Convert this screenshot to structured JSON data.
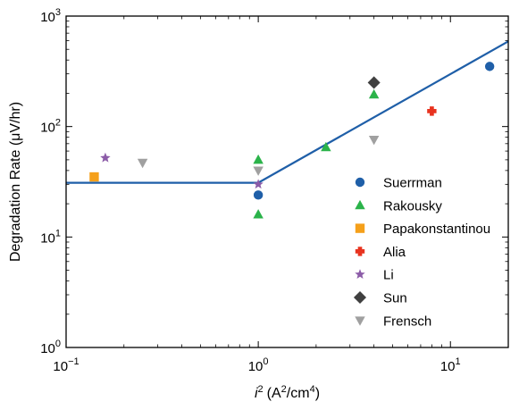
{
  "chart_data": {
    "type": "scatter",
    "title": "",
    "xlabel_main": "i",
    "xlabel_sup": "2",
    "xlabel_units": "(A",
    "xlabel_units_sup": "2",
    "xlabel_units_mid": "/cm",
    "xlabel_units_sup2": "4",
    "xlabel_units_end": ")",
    "ylabel": "Degradation Rate (μV/hr)",
    "x_scale": "log",
    "y_scale": "log",
    "xlim": [
      0.1,
      20
    ],
    "ylim": [
      1,
      1000
    ],
    "grid": false,
    "legend_position": "center-right",
    "x_ticks": [
      {
        "value": 0.1,
        "base": "10",
        "exp": "−1"
      },
      {
        "value": 1,
        "base": "10",
        "exp": "0"
      },
      {
        "value": 10,
        "base": "10",
        "exp": "1"
      }
    ],
    "y_ticks": [
      {
        "value": 1,
        "base": "10",
        "exp": "0"
      },
      {
        "value": 10,
        "base": "10",
        "exp": "1"
      },
      {
        "value": 100,
        "base": "10",
        "exp": "2"
      },
      {
        "value": 1000,
        "base": "10",
        "exp": "3"
      }
    ],
    "fit_line": {
      "color": "#1f5fa8",
      "points": [
        [
          0.1,
          31
        ],
        [
          1.0,
          31
        ],
        [
          20,
          590
        ]
      ]
    },
    "series": [
      {
        "name": "Suerrman",
        "marker": "circle",
        "color": "#1f5fa8",
        "points": [
          [
            1.0,
            24
          ],
          [
            16,
            350
          ]
        ]
      },
      {
        "name": "Rakousky",
        "marker": "triangle-up",
        "color": "#2bb34a",
        "points": [
          [
            1.0,
            50
          ],
          [
            1.0,
            16
          ],
          [
            2.25,
            65
          ],
          [
            4.0,
            195
          ]
        ]
      },
      {
        "name": "Papakonstantinou",
        "marker": "square",
        "color": "#f5a01a",
        "points": [
          [
            0.14,
            35
          ]
        ]
      },
      {
        "name": "Alia",
        "marker": "plus",
        "color": "#e8331f",
        "points": [
          [
            8.0,
            138
          ]
        ]
      },
      {
        "name": "Li",
        "marker": "star",
        "color": "#8c5ca8",
        "points": [
          [
            0.16,
            52
          ],
          [
            1.0,
            30
          ]
        ]
      },
      {
        "name": "Sun",
        "marker": "diamond",
        "color": "#404040",
        "points": [
          [
            4.0,
            250
          ]
        ]
      },
      {
        "name": "Frensch",
        "marker": "triangle-down",
        "color": "#a0a0a0",
        "points": [
          [
            0.25,
            47
          ],
          [
            1.0,
            40
          ],
          [
            4.0,
            76
          ]
        ]
      }
    ]
  }
}
